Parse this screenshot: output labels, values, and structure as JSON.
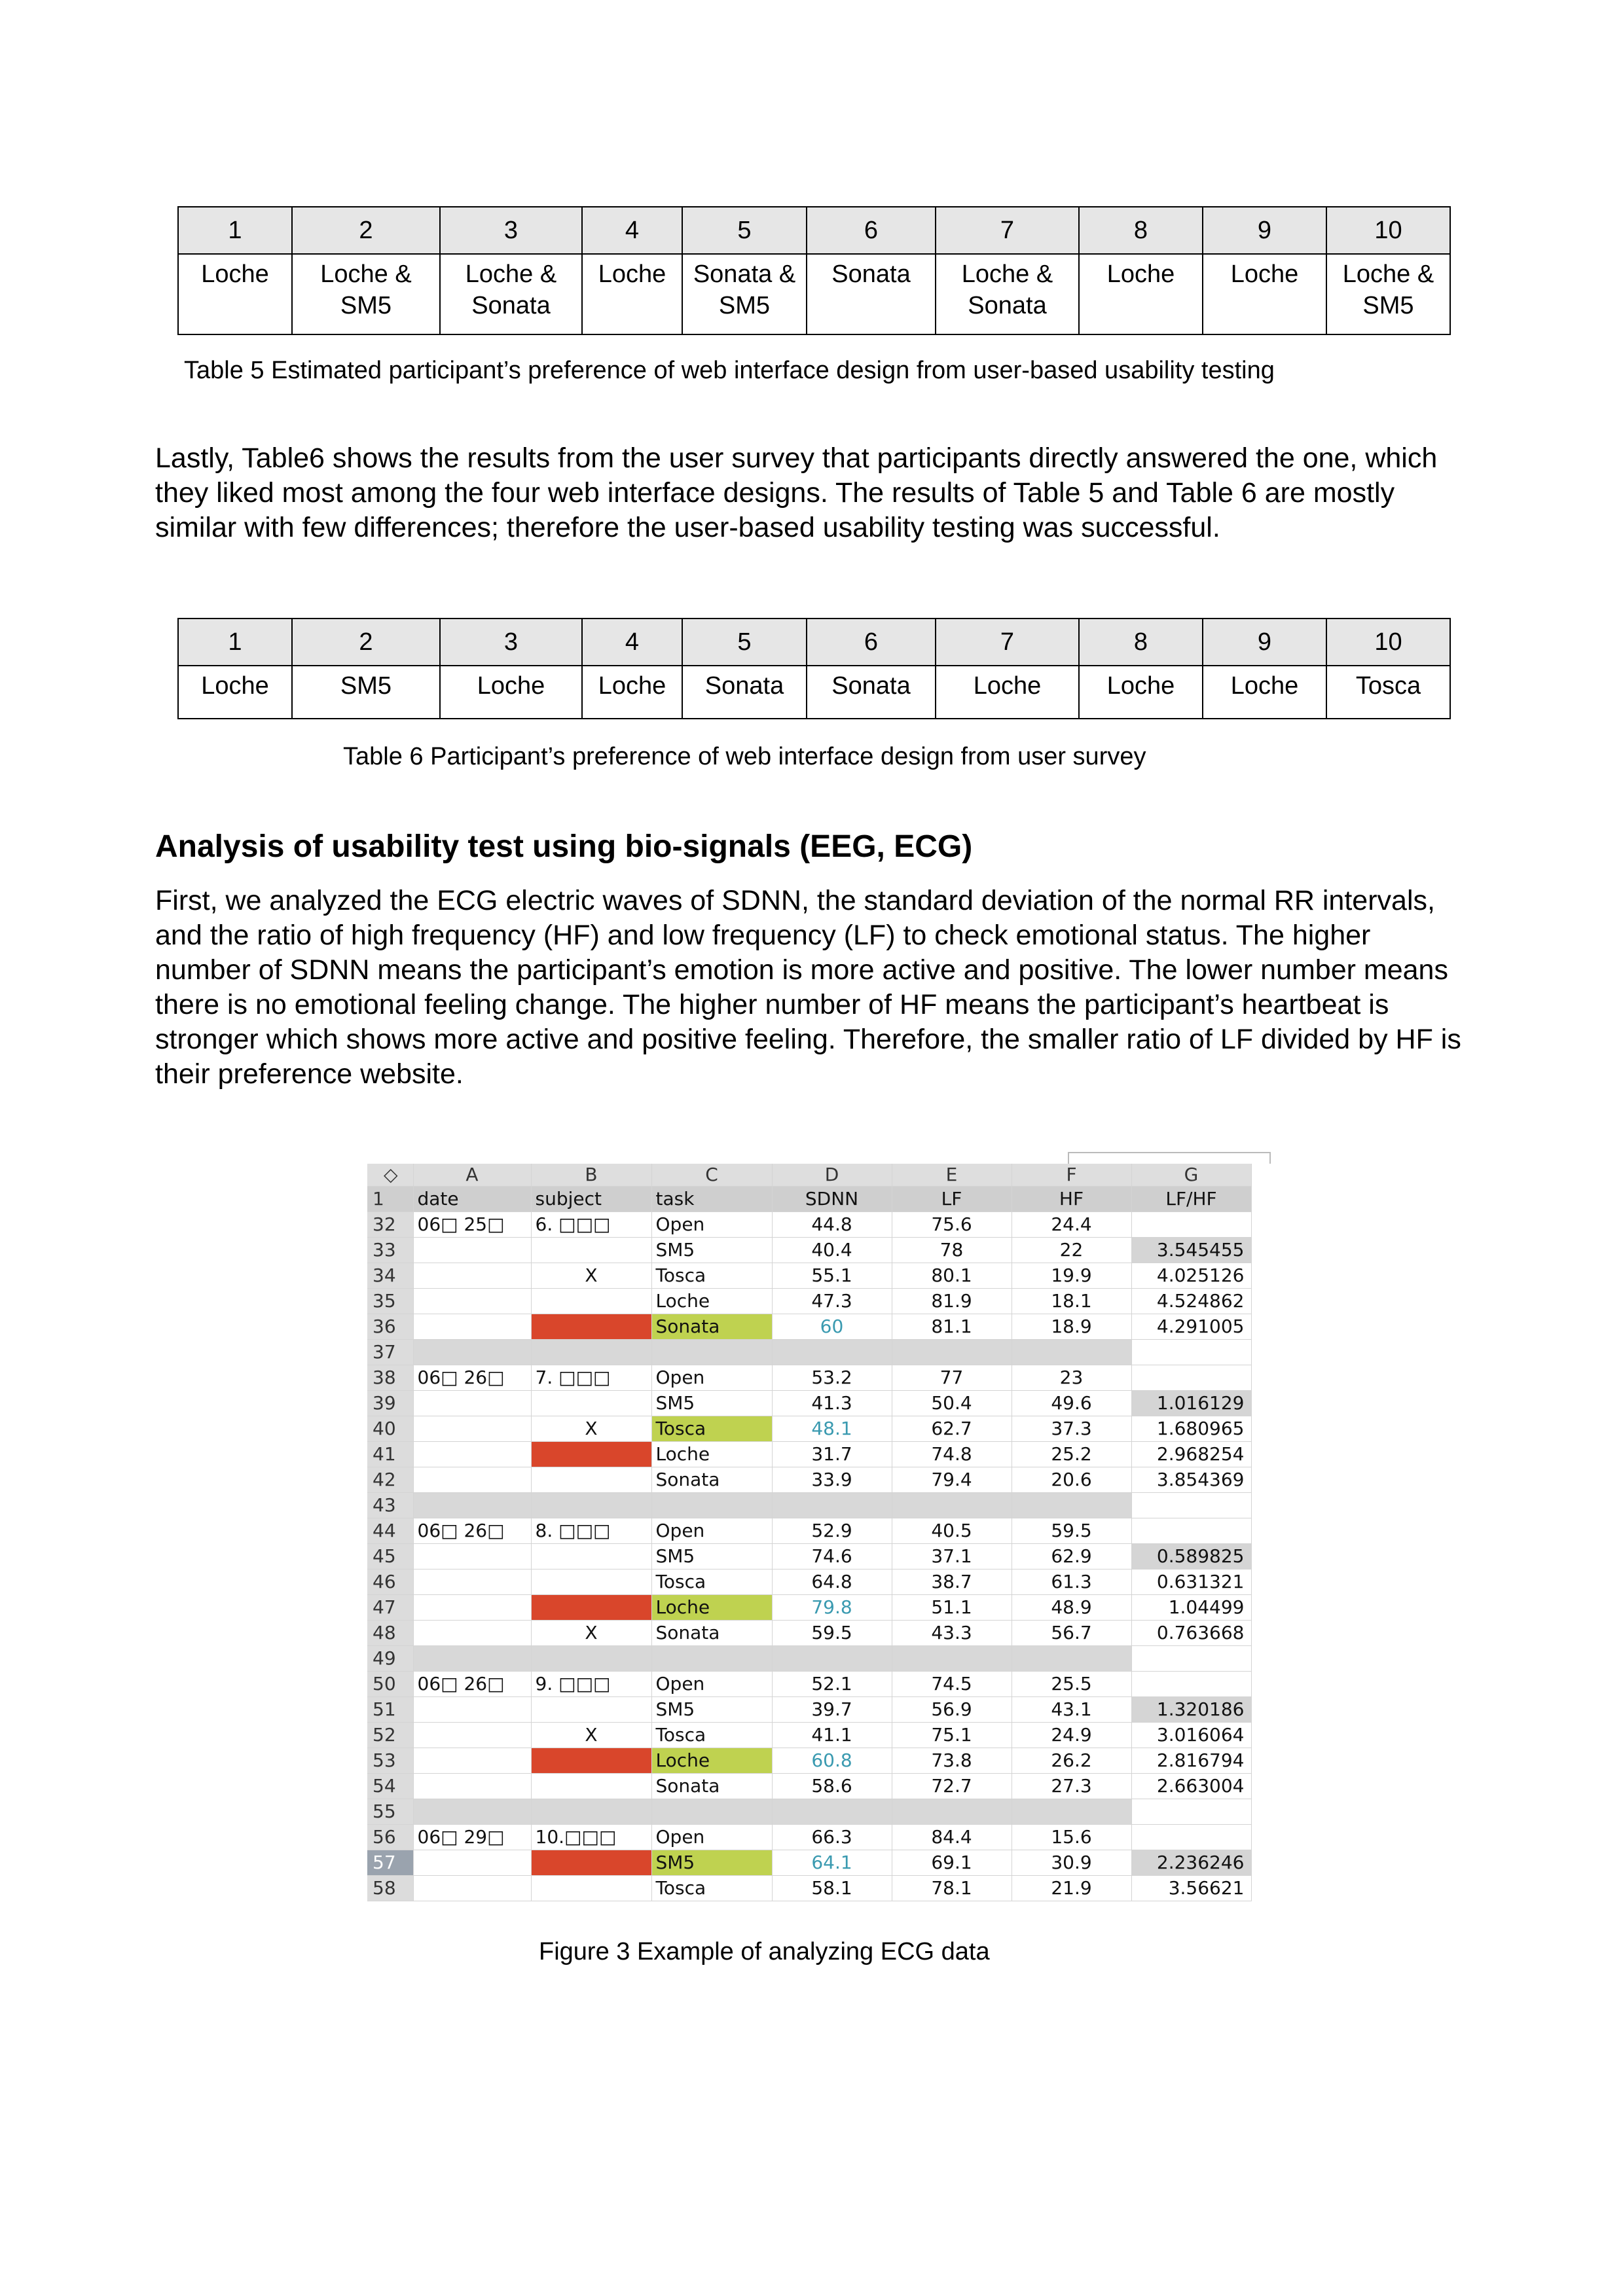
{
  "table5": {
    "headers": [
      "1",
      "2",
      "3",
      "4",
      "5",
      "6",
      "7",
      "8",
      "9",
      "10"
    ],
    "values": [
      "Loche",
      "Loche & SM5",
      "Loche & Sonata",
      "Loche",
      "Sonata & SM5",
      "Sonata",
      "Loche & Sonata",
      "Loche",
      "Loche",
      "Loche & SM5"
    ],
    "caption": "Table 5 Estimated participant’s preference of web interface design from user-based usability testing"
  },
  "para1": "Lastly, Table6 shows the results from the user survey that participants directly answered the one, which they liked most among the four web interface designs. The results of Table 5 and Table 6 are mostly similar with few differences; therefore the user-based usability testing was successful.",
  "table6": {
    "headers": [
      "1",
      "2",
      "3",
      "4",
      "5",
      "6",
      "7",
      "8",
      "9",
      "10"
    ],
    "values": [
      "Loche",
      "SM5",
      "Loche",
      "Loche",
      "Sonata",
      "Sonata",
      "Loche",
      "Loche",
      "Loche",
      "Tosca"
    ],
    "caption": "Table 6 Participant’s preference of web interface design from user survey"
  },
  "heading": "Analysis of usability test using bio-signals (EEG, ECG)",
  "para2": "First, we analyzed the ECG electric waves of SDNN, the standard deviation of the normal RR intervals, and the ratio of high frequency (HF) and low frequency (LF) to check emotional status. The higher number of SDNN means the participant’s emotion is more active and positive. The lower number means there is no emotional feeling change. The higher number of HF means the participant’s heartbeat is stronger which shows more active and positive feeling. Therefore, the smaller ratio of LF divided by HF is their preference website.",
  "figure": {
    "corner_glyph": "◇",
    "columns": [
      "A",
      "B",
      "C",
      "D",
      "E",
      "F",
      "G"
    ],
    "header": {
      "rownum": "1",
      "cells": [
        "date",
        "subject",
        "task",
        "SDNN",
        "LF",
        "HF",
        "LF/HF"
      ]
    },
    "rows": [
      {
        "n": "32",
        "date": "06□ 25□",
        "subject": "6. □□□",
        "mark": "",
        "task": "Open",
        "sdnn": "44.8",
        "lf": "75.6",
        "hf": "24.4",
        "ratio": "",
        "subj_red": false,
        "task_green": false,
        "sdnn_teal": false,
        "ratio_gray": false
      },
      {
        "n": "33",
        "date": "",
        "subject": "",
        "mark": "",
        "task": "SM5",
        "sdnn": "40.4",
        "lf": "78",
        "hf": "22",
        "ratio": "3.545455",
        "subj_red": false,
        "task_green": false,
        "sdnn_teal": false,
        "ratio_gray": true
      },
      {
        "n": "34",
        "date": "",
        "subject": "",
        "mark": "X",
        "task": "Tosca",
        "sdnn": "55.1",
        "lf": "80.1",
        "hf": "19.9",
        "ratio": "4.025126",
        "subj_red": false,
        "task_green": false,
        "sdnn_teal": false,
        "ratio_gray": false
      },
      {
        "n": "35",
        "date": "",
        "subject": "",
        "mark": "",
        "task": "Loche",
        "sdnn": "47.3",
        "lf": "81.9",
        "hf": "18.1",
        "ratio": "4.524862",
        "subj_red": false,
        "task_green": false,
        "sdnn_teal": false,
        "ratio_gray": false
      },
      {
        "n": "36",
        "date": "",
        "subject": "",
        "mark": "",
        "task": "Sonata",
        "sdnn": "60",
        "lf": "81.1",
        "hf": "18.9",
        "ratio": "4.291005",
        "subj_red": true,
        "task_green": true,
        "sdnn_teal": true,
        "ratio_gray": false
      },
      {
        "n": "37",
        "sep": true
      },
      {
        "n": "38",
        "date": "06□ 26□",
        "subject": "7. □□□",
        "mark": "",
        "task": "Open",
        "sdnn": "53.2",
        "lf": "77",
        "hf": "23",
        "ratio": "",
        "subj_red": false,
        "task_green": false,
        "sdnn_teal": false,
        "ratio_gray": false
      },
      {
        "n": "39",
        "date": "",
        "subject": "",
        "mark": "",
        "task": "SM5",
        "sdnn": "41.3",
        "lf": "50.4",
        "hf": "49.6",
        "ratio": "1.016129",
        "subj_red": false,
        "task_green": false,
        "sdnn_teal": false,
        "ratio_gray": true
      },
      {
        "n": "40",
        "date": "",
        "subject": "",
        "mark": "X",
        "task": "Tosca",
        "sdnn": "48.1",
        "lf": "62.7",
        "hf": "37.3",
        "ratio": "1.680965",
        "subj_red": false,
        "task_green": true,
        "sdnn_teal": true,
        "ratio_gray": false
      },
      {
        "n": "41",
        "date": "",
        "subject": "",
        "mark": "",
        "task": "Loche",
        "sdnn": "31.7",
        "lf": "74.8",
        "hf": "25.2",
        "ratio": "2.968254",
        "subj_red": true,
        "task_green": false,
        "sdnn_teal": false,
        "ratio_gray": false
      },
      {
        "n": "42",
        "date": "",
        "subject": "",
        "mark": "",
        "task": "Sonata",
        "sdnn": "33.9",
        "lf": "79.4",
        "hf": "20.6",
        "ratio": "3.854369",
        "subj_red": false,
        "task_green": false,
        "sdnn_teal": false,
        "ratio_gray": false
      },
      {
        "n": "43",
        "sep": true
      },
      {
        "n": "44",
        "date": "06□ 26□",
        "subject": "8. □□□",
        "mark": "",
        "task": "Open",
        "sdnn": "52.9",
        "lf": "40.5",
        "hf": "59.5",
        "ratio": "",
        "subj_red": false,
        "task_green": false,
        "sdnn_teal": false,
        "ratio_gray": false
      },
      {
        "n": "45",
        "date": "",
        "subject": "",
        "mark": "",
        "task": "SM5",
        "sdnn": "74.6",
        "lf": "37.1",
        "hf": "62.9",
        "ratio": "0.589825",
        "subj_red": false,
        "task_green": false,
        "sdnn_teal": false,
        "ratio_gray": true
      },
      {
        "n": "46",
        "date": "",
        "subject": "",
        "mark": "",
        "task": "Tosca",
        "sdnn": "64.8",
        "lf": "38.7",
        "hf": "61.3",
        "ratio": "0.631321",
        "subj_red": false,
        "task_green": false,
        "sdnn_teal": false,
        "ratio_gray": false
      },
      {
        "n": "47",
        "date": "",
        "subject": "",
        "mark": "",
        "task": "Loche",
        "sdnn": "79.8",
        "lf": "51.1",
        "hf": "48.9",
        "ratio": "1.04499",
        "subj_red": true,
        "task_green": true,
        "sdnn_teal": true,
        "ratio_gray": false
      },
      {
        "n": "48",
        "date": "",
        "subject": "",
        "mark": "X",
        "task": "Sonata",
        "sdnn": "59.5",
        "lf": "43.3",
        "hf": "56.7",
        "ratio": "0.763668",
        "subj_red": false,
        "task_green": false,
        "sdnn_teal": false,
        "ratio_gray": false
      },
      {
        "n": "49",
        "sep": true
      },
      {
        "n": "50",
        "date": "06□ 26□",
        "subject": "9. □□□",
        "mark": "",
        "task": "Open",
        "sdnn": "52.1",
        "lf": "74.5",
        "hf": "25.5",
        "ratio": "",
        "subj_red": false,
        "task_green": false,
        "sdnn_teal": false,
        "ratio_gray": false
      },
      {
        "n": "51",
        "date": "",
        "subject": "",
        "mark": "",
        "task": "SM5",
        "sdnn": "39.7",
        "lf": "56.9",
        "hf": "43.1",
        "ratio": "1.320186",
        "subj_red": false,
        "task_green": false,
        "sdnn_teal": false,
        "ratio_gray": true
      },
      {
        "n": "52",
        "date": "",
        "subject": "",
        "mark": "X",
        "task": "Tosca",
        "sdnn": "41.1",
        "lf": "75.1",
        "hf": "24.9",
        "ratio": "3.016064",
        "subj_red": false,
        "task_green": false,
        "sdnn_teal": false,
        "ratio_gray": false
      },
      {
        "n": "53",
        "date": "",
        "subject": "",
        "mark": "",
        "task": "Loche",
        "sdnn": "60.8",
        "lf": "73.8",
        "hf": "26.2",
        "ratio": "2.816794",
        "subj_red": true,
        "task_green": true,
        "sdnn_teal": true,
        "ratio_gray": false
      },
      {
        "n": "54",
        "date": "",
        "subject": "",
        "mark": "",
        "task": "Sonata",
        "sdnn": "58.6",
        "lf": "72.7",
        "hf": "27.3",
        "ratio": "2.663004",
        "subj_red": false,
        "task_green": false,
        "sdnn_teal": false,
        "ratio_gray": false
      },
      {
        "n": "55",
        "sep": true
      },
      {
        "n": "56",
        "date": "06□ 29□",
        "subject": "10.□□□",
        "mark": "",
        "task": "Open",
        "sdnn": "66.3",
        "lf": "84.4",
        "hf": "15.6",
        "ratio": "",
        "subj_red": false,
        "task_green": false,
        "sdnn_teal": false,
        "ratio_gray": false
      },
      {
        "n": "57",
        "date": "",
        "subject": "",
        "mark": "",
        "task": "SM5",
        "sdnn": "64.1",
        "lf": "69.1",
        "hf": "30.9",
        "ratio": "2.236246",
        "subj_red": true,
        "task_green": true,
        "sdnn_teal": true,
        "ratio_gray": true,
        "selected": true
      },
      {
        "n": "58",
        "date": "",
        "subject": "",
        "mark": "",
        "task": "Tosca",
        "sdnn": "58.1",
        "lf": "78.1",
        "hf": "21.9",
        "ratio": "3.56621",
        "subj_red": false,
        "task_green": false,
        "sdnn_teal": false,
        "ratio_gray": false
      }
    ],
    "caption": "Figure 3 Example of analyzing ECG data"
  }
}
